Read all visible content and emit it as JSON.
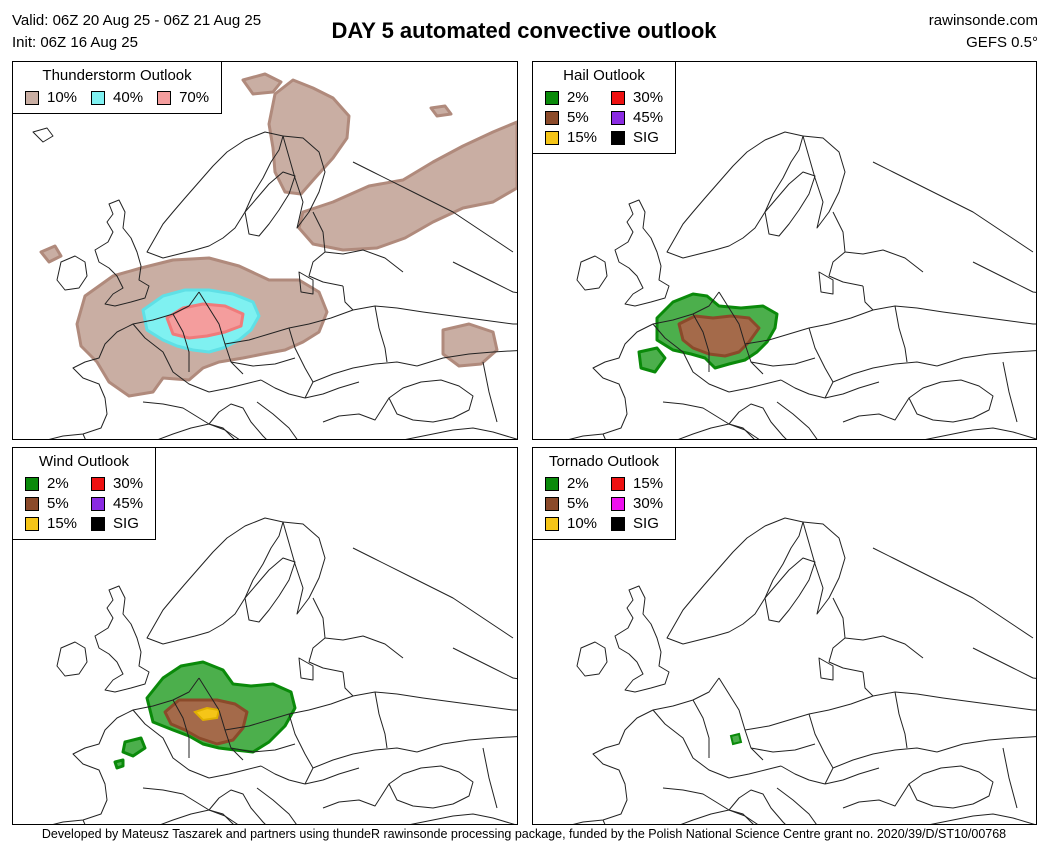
{
  "header": {
    "valid": "Valid: 06Z 20 Aug 25 - 06Z 21 Aug 25",
    "init": "Init: 06Z 16 Aug 25",
    "title": "DAY 5 automated convective outlook",
    "site": "rawinsonde.com",
    "model": "GEFS 0.5°"
  },
  "panels": [
    {
      "title": "Thunderstorm Outlook",
      "columns": 3,
      "legend": [
        {
          "label": "10%",
          "color": "#c9aea3"
        },
        {
          "label": "40%",
          "color": "#7ff1f1"
        },
        {
          "label": "70%",
          "color": "#f49d9d"
        }
      ]
    },
    {
      "title": "Hail Outlook",
      "columns": 2,
      "legend": [
        {
          "label": "2%",
          "color": "#0a8a0a"
        },
        {
          "label": "30%",
          "color": "#ee1111"
        },
        {
          "label": "5%",
          "color": "#8b4a2a"
        },
        {
          "label": "45%",
          "color": "#8a2be2"
        },
        {
          "label": "15%",
          "color": "#f5c518"
        },
        {
          "label": "SIG",
          "color": "#000000"
        }
      ]
    },
    {
      "title": "Wind Outlook",
      "columns": 2,
      "legend": [
        {
          "label": "2%",
          "color": "#0a8a0a"
        },
        {
          "label": "30%",
          "color": "#ee1111"
        },
        {
          "label": "5%",
          "color": "#8b4a2a"
        },
        {
          "label": "45%",
          "color": "#8a2be2"
        },
        {
          "label": "15%",
          "color": "#f5c518"
        },
        {
          "label": "SIG",
          "color": "#000000"
        }
      ]
    },
    {
      "title": "Tornado Outlook",
      "columns": 2,
      "legend": [
        {
          "label": "2%",
          "color": "#0a8a0a"
        },
        {
          "label": "15%",
          "color": "#ee1111"
        },
        {
          "label": "5%",
          "color": "#8b4a2a"
        },
        {
          "label": "30%",
          "color": "#ee11ee"
        },
        {
          "label": "10%",
          "color": "#f5c518"
        },
        {
          "label": "SIG",
          "color": "#000000"
        }
      ]
    }
  ],
  "footer": "Developed by Mateusz Taszarek and partners using thundeR rawinsonde processing package, funded by the Polish National Science Centre grant no. 2020/39/D/ST10/00768"
}
